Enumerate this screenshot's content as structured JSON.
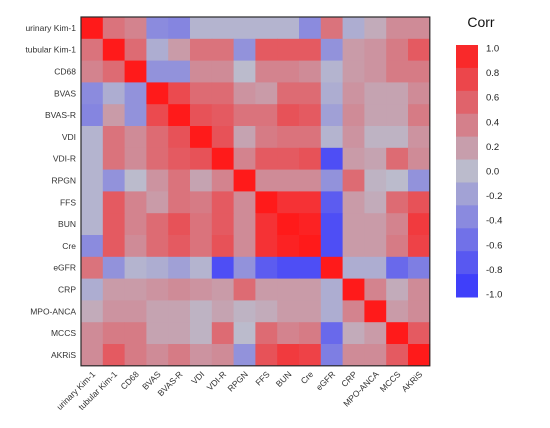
{
  "chart_data": {
    "type": "heatmap",
    "variables": [
      "urinary Kim-1",
      "tubular Kim-1",
      "CD68",
      "BVAS",
      "BVAS-R",
      "VDI",
      "VDI-R",
      "RPGN",
      "FFS",
      "BUN",
      "Cre",
      "eGFR",
      "CRP",
      "MPO-ANCA",
      "MCCS",
      "AKRiS"
    ],
    "x_labels": [
      "urinary Kim-1",
      "tubular Kim-1",
      "CD68",
      "BVAS",
      "BVAS-R",
      "VDI",
      "VDI-R",
      "RPGN",
      "FFS",
      "BUN",
      "Cre",
      "eGFR",
      "CRP",
      "MPO-ANCA",
      "MCCS",
      "AKRiS"
    ],
    "y_labels": [
      "urinary Kim-1",
      "tubular Kim-1",
      "CD68",
      "BVAS",
      "BVAS-R",
      "VDI",
      "VDI-R",
      "RPGN",
      "FFS",
      "BUN",
      "Cre",
      "eGFR",
      "CRP",
      "MPO-ANCA",
      "MCCS",
      "AKRiS"
    ],
    "values": [
      [
        1.0,
        0.45,
        0.35,
        -0.35,
        -0.4,
        -0.05,
        -0.05,
        -0.05,
        -0.05,
        -0.05,
        -0.35,
        0.45,
        -0.1,
        0.1,
        0.3,
        0.3
      ],
      [
        0.45,
        1.0,
        0.5,
        -0.1,
        0.2,
        0.45,
        0.45,
        -0.3,
        0.6,
        0.6,
        0.6,
        -0.3,
        0.2,
        0.25,
        0.4,
        0.6
      ],
      [
        0.35,
        0.5,
        1.0,
        -0.3,
        -0.3,
        0.3,
        0.3,
        0.0,
        0.35,
        0.35,
        0.3,
        -0.05,
        0.2,
        0.25,
        0.4,
        0.4
      ],
      [
        -0.35,
        -0.1,
        -0.3,
        1.0,
        0.7,
        0.5,
        0.5,
        0.25,
        0.2,
        0.5,
        0.5,
        -0.1,
        0.25,
        0.15,
        0.15,
        0.3
      ],
      [
        -0.4,
        0.2,
        -0.3,
        0.7,
        1.0,
        0.65,
        0.6,
        0.45,
        0.45,
        0.65,
        0.6,
        -0.2,
        0.3,
        0.15,
        0.15,
        0.4
      ],
      [
        -0.05,
        0.45,
        0.3,
        0.5,
        0.65,
        1.0,
        0.65,
        0.15,
        0.4,
        0.45,
        0.45,
        -0.05,
        0.25,
        0.05,
        0.05,
        0.25
      ],
      [
        -0.05,
        0.45,
        0.3,
        0.5,
        0.6,
        0.65,
        1.0,
        0.35,
        0.6,
        0.6,
        0.65,
        -0.8,
        0.2,
        0.15,
        0.5,
        0.3
      ],
      [
        -0.05,
        -0.3,
        0.0,
        0.25,
        0.45,
        0.15,
        0.35,
        1.0,
        0.3,
        0.3,
        0.3,
        -0.3,
        0.5,
        0.05,
        0.0,
        -0.3
      ],
      [
        -0.05,
        0.6,
        0.35,
        0.2,
        0.45,
        0.4,
        0.6,
        0.3,
        1.0,
        0.85,
        0.85,
        -0.7,
        0.2,
        0.1,
        0.5,
        0.65
      ],
      [
        -0.05,
        0.6,
        0.35,
        0.5,
        0.65,
        0.45,
        0.6,
        0.3,
        0.85,
        1.0,
        0.95,
        -0.8,
        0.2,
        0.2,
        0.35,
        0.8
      ],
      [
        -0.35,
        0.6,
        0.3,
        0.5,
        0.6,
        0.45,
        0.65,
        0.3,
        0.85,
        0.95,
        1.0,
        -0.8,
        0.2,
        0.2,
        0.4,
        0.75
      ],
      [
        0.45,
        -0.3,
        -0.05,
        -0.1,
        -0.2,
        -0.05,
        -0.8,
        -0.3,
        -0.7,
        -0.8,
        -0.8,
        1.0,
        -0.1,
        -0.1,
        -0.6,
        -0.45
      ],
      [
        -0.1,
        0.2,
        0.2,
        0.25,
        0.3,
        0.25,
        0.2,
        0.5,
        0.2,
        0.2,
        0.2,
        -0.1,
        1.0,
        0.35,
        0.1,
        0.3
      ],
      [
        0.1,
        0.25,
        0.25,
        0.15,
        0.15,
        0.05,
        0.15,
        0.05,
        0.1,
        0.2,
        0.2,
        -0.1,
        0.35,
        1.0,
        0.2,
        0.3
      ],
      [
        0.3,
        0.4,
        0.4,
        0.15,
        0.15,
        0.05,
        0.5,
        0.0,
        0.5,
        0.35,
        0.4,
        -0.6,
        0.1,
        0.2,
        1.0,
        0.6
      ],
      [
        0.3,
        0.6,
        0.4,
        0.3,
        0.4,
        0.25,
        0.3,
        -0.3,
        0.65,
        0.8,
        0.75,
        -0.45,
        0.3,
        0.3,
        0.6,
        1.0
      ]
    ],
    "value_range": [
      -1.0,
      1.0
    ],
    "legend": {
      "title": "Corr",
      "ticks": [
        "1.0",
        "0.8",
        "0.6",
        "0.4",
        "0.2",
        "0.0",
        "-0.2",
        "-0.4",
        "-0.6",
        "-0.8",
        "-1.0"
      ],
      "placement": "right"
    },
    "colors": {
      "high": "#ff1a1a",
      "mid": "#bbbbcc",
      "low": "#3333ff",
      "border": "#2a2a2a"
    }
  }
}
